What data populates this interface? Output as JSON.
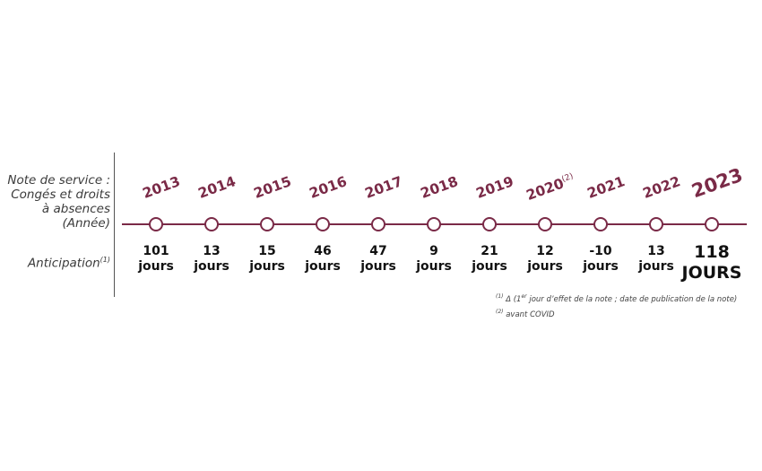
{
  "labels": {
    "note_line1": "Note de service :",
    "note_line2": "Congés et droits",
    "note_line3": "à absences",
    "note_line4": "(Année)",
    "anticipation": "Anticipation",
    "anticipation_sup": "(1)"
  },
  "timeline": [
    {
      "year": "2013",
      "sup": "",
      "value": "101",
      "unit": "jours"
    },
    {
      "year": "2014",
      "sup": "",
      "value": "13",
      "unit": "jours"
    },
    {
      "year": "2015",
      "sup": "",
      "value": "15",
      "unit": "jours"
    },
    {
      "year": "2016",
      "sup": "",
      "value": "46",
      "unit": "jours"
    },
    {
      "year": "2017",
      "sup": "",
      "value": "47",
      "unit": "jours"
    },
    {
      "year": "2018",
      "sup": "",
      "value": "9",
      "unit": "jours"
    },
    {
      "year": "2019",
      "sup": "",
      "value": "21",
      "unit": "jours"
    },
    {
      "year": "2020",
      "sup": "(2)",
      "value": "12",
      "unit": "jours"
    },
    {
      "year": "2021",
      "sup": "",
      "value": "-10",
      "unit": "jours"
    },
    {
      "year": "2022",
      "sup": "",
      "value": "13",
      "unit": "jours"
    },
    {
      "year": "2023",
      "sup": "",
      "value": "118",
      "unit": "JOURS"
    }
  ],
  "footnotes": {
    "fn1_marker": "(1)",
    "fn1_a": "Δ (1",
    "fn1_sup": "er",
    "fn1_b": " jour d’effet de la note ; date de publication de la note)",
    "fn2_marker": "(2)",
    "fn2_text": " avant COVID"
  },
  "colors": {
    "accent": "#7a2a47"
  }
}
